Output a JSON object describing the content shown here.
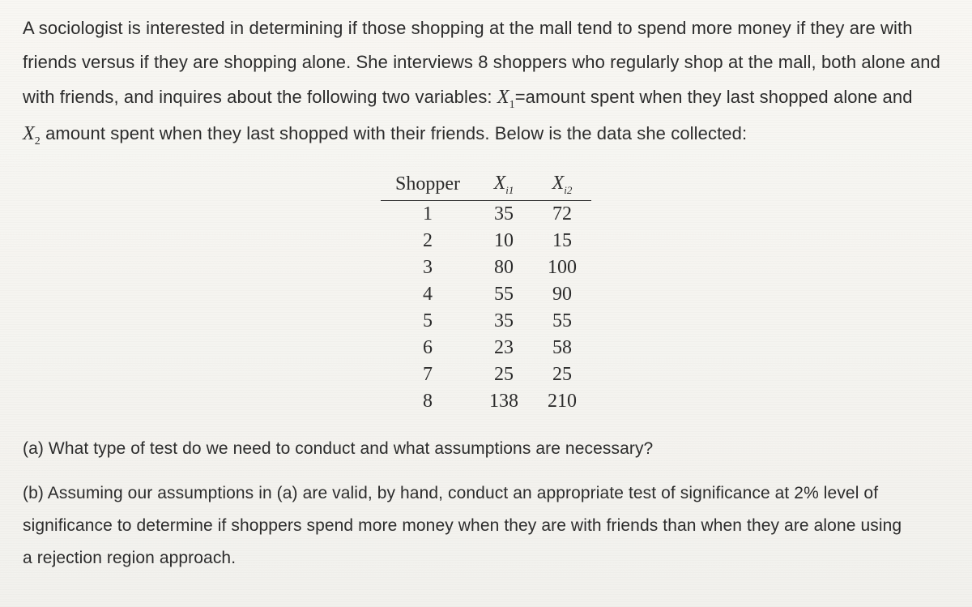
{
  "intro": {
    "line1a": "A sociologist is interested in determining if those shopping at the mall tend to spend more money if they are with",
    "line2a": "friends versus if they are shopping alone. She interviews 8 shoppers who regularly shop at the mall, both alone and",
    "line3a": "with friends, and inquires about the following two variables: ",
    "var1_base": "X",
    "var1_sub": "1",
    "line3b": "=amount spent when they last shopped alone and",
    "var2_base": "X",
    "var2_sub": "2",
    "line4b": " amount spent when they last shopped with their friends. Below is the data she collected:"
  },
  "table": {
    "headers": {
      "shopper": "Shopper",
      "x1_base": "X",
      "x1_sub": "i1",
      "x2_base": "X",
      "x2_sub": "i2"
    },
    "rows": [
      {
        "shopper": "1",
        "x1": "35",
        "x2": "72"
      },
      {
        "shopper": "2",
        "x1": "10",
        "x2": "15"
      },
      {
        "shopper": "3",
        "x1": "80",
        "x2": "100"
      },
      {
        "shopper": "4",
        "x1": "55",
        "x2": "90"
      },
      {
        "shopper": "5",
        "x1": "35",
        "x2": "55"
      },
      {
        "shopper": "6",
        "x1": "23",
        "x2": "58"
      },
      {
        "shopper": "7",
        "x1": "25",
        "x2": "25"
      },
      {
        "shopper": "8",
        "x1": "138",
        "x2": "210"
      }
    ]
  },
  "questions": {
    "a": "(a) What type of test do we need to conduct and what assumptions are necessary?",
    "b1": "(b) Assuming our assumptions in (a) are valid, by hand, conduct an appropriate test of significance at 2% level of",
    "b2": "significance to determine if shoppers spend more money when they are with friends than when they are alone using",
    "b3": "a rejection region approach."
  }
}
